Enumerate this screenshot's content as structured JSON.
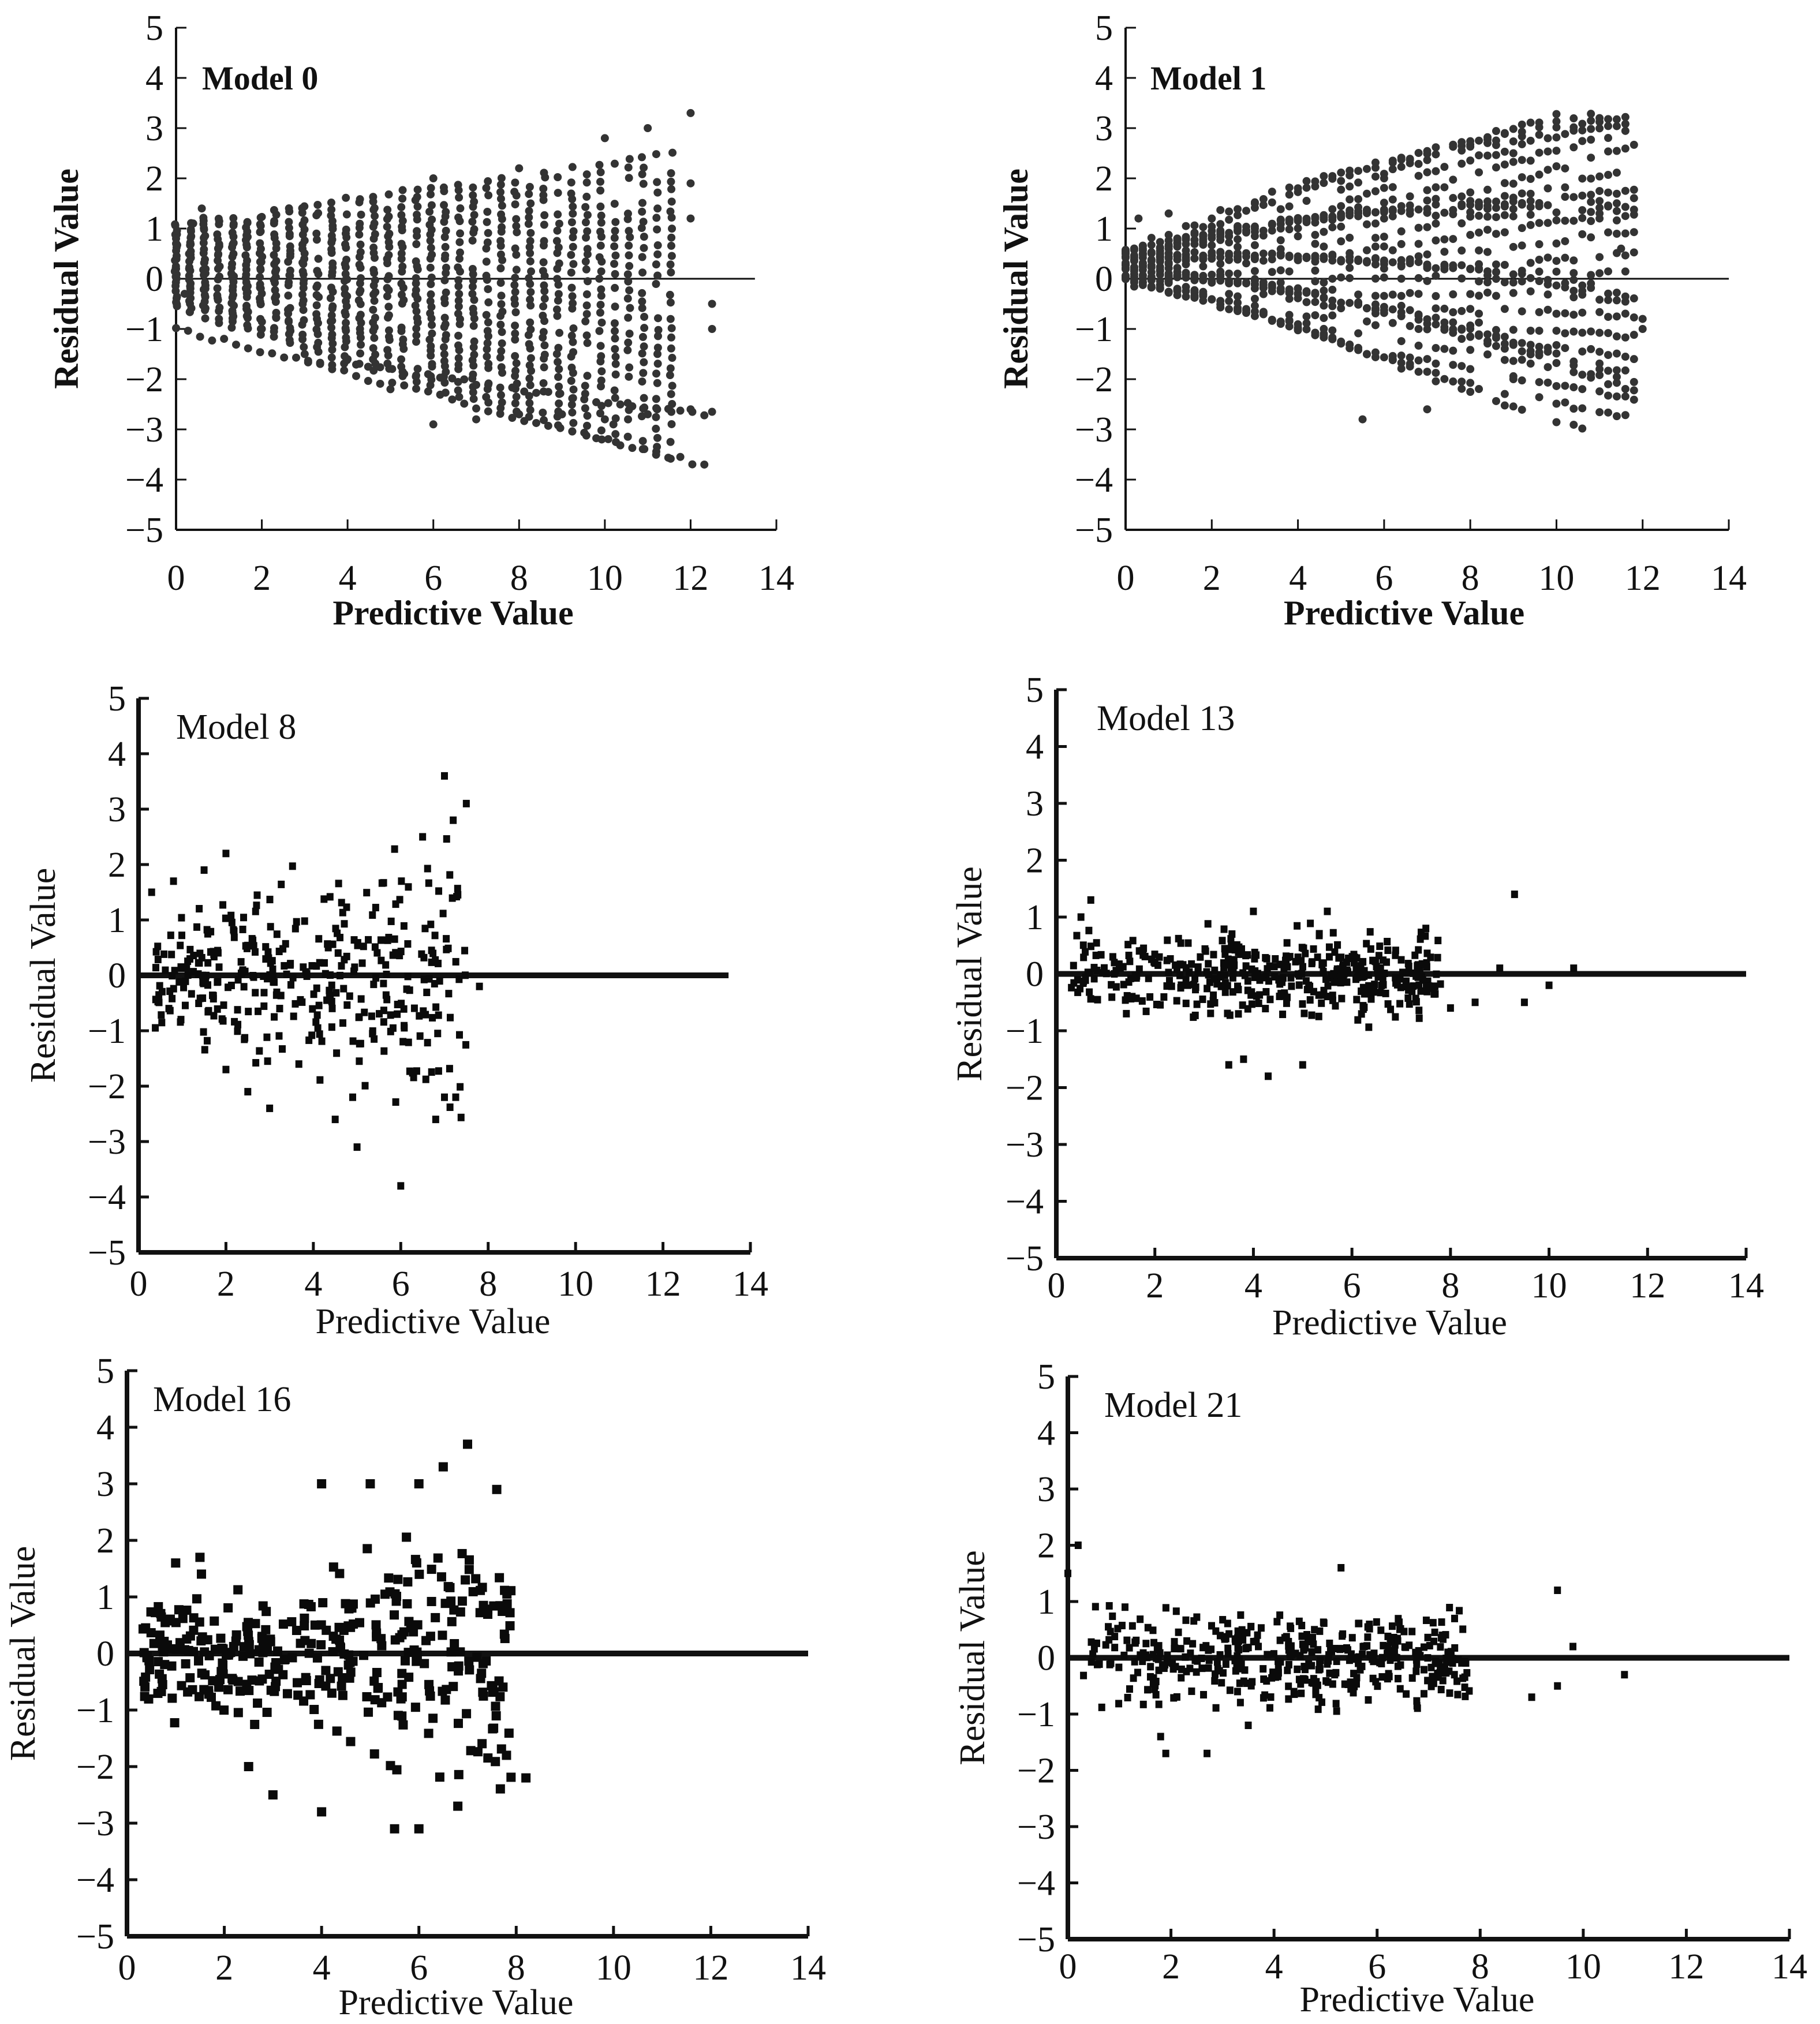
{
  "figure": {
    "domain": "residual scatter plots"
  },
  "chart_data": [
    {
      "type": "scatter",
      "title": "Model  0",
      "style": "bold",
      "xlabel": "Predictive  Value",
      "ylabel": "Residual  Value",
      "xlim": [
        0,
        14
      ],
      "ylim": [
        -5,
        5
      ],
      "xticks": [
        "0",
        "2",
        "4",
        "6",
        "8",
        "10",
        "12",
        "14"
      ],
      "yticks": [
        "-5",
        "-4",
        "-3",
        "-2",
        "-1",
        "0",
        "1",
        "2",
        "3",
        "4",
        "5"
      ],
      "reference_line": {
        "y": 0,
        "x_end": 13.5
      },
      "points_generator": "vertical-bands",
      "points": [
        [
          0.0,
          0.2
        ],
        [
          0.0,
          0.8
        ],
        [
          0.2,
          -0.3
        ],
        [
          0.4,
          1.1
        ],
        [
          0.6,
          1.4
        ],
        [
          1.0,
          -0.8
        ],
        [
          2.0,
          -1.0
        ],
        [
          3.0,
          -1.5
        ],
        [
          4.0,
          -1.6
        ],
        [
          5.0,
          -2.2
        ],
        [
          6.0,
          -2.9
        ],
        [
          7.0,
          -2.8
        ],
        [
          8.0,
          -2.7
        ],
        [
          9.0,
          -2.7
        ],
        [
          10.0,
          -2.8
        ],
        [
          11.0,
          -2.7
        ],
        [
          12.0,
          -2.6
        ],
        [
          12.5,
          -2.65
        ],
        [
          6.0,
          2.0
        ],
        [
          8.0,
          2.2
        ],
        [
          10.0,
          2.8
        ],
        [
          11.0,
          3.0
        ],
        [
          12.0,
          3.3
        ],
        [
          12.0,
          1.9
        ],
        [
          12.5,
          -0.5
        ],
        [
          12.5,
          -1.0
        ],
        [
          12.0,
          1.2
        ]
      ]
    },
    {
      "type": "scatter",
      "title": "Model  1",
      "style": "bold",
      "xlabel": "Predictive  Value",
      "ylabel": "Residual  Value",
      "xlim": [
        0,
        14
      ],
      "ylim": [
        -5,
        5
      ],
      "xticks": [
        "0",
        "2",
        "4",
        "6",
        "8",
        "10",
        "12",
        "14"
      ],
      "yticks": [
        "-5",
        "-4",
        "-3",
        "-2",
        "-1",
        "0",
        "1",
        "2",
        "3",
        "4",
        "5"
      ],
      "reference_line": {
        "y": 0,
        "x_end": 14
      },
      "points_generator": "fan-curves",
      "points": [
        [
          0.0,
          0.5
        ],
        [
          0.3,
          1.2
        ],
        [
          1.0,
          1.3
        ],
        [
          3.0,
          1.5
        ],
        [
          6.0,
          2.0
        ],
        [
          9.0,
          2.5
        ],
        [
          11.0,
          3.2
        ],
        [
          5.5,
          -2.8
        ],
        [
          7.0,
          -2.6
        ],
        [
          9.0,
          -2.0
        ],
        [
          11.0,
          -1.8
        ],
        [
          12.0,
          -1.0
        ],
        [
          11.0,
          1.3
        ],
        [
          11.5,
          0.6
        ],
        [
          12.0,
          -0.8
        ]
      ]
    },
    {
      "type": "scatter",
      "title": "Model 8",
      "style": "regular",
      "xlabel": "Predictive Value",
      "ylabel": "Residual Value",
      "xlim": [
        0,
        14
      ],
      "ylim": [
        -5,
        5
      ],
      "xticks": [
        "0",
        "2",
        "4",
        "6",
        "8",
        "10",
        "12",
        "14"
      ],
      "yticks": [
        "-5",
        "-4",
        "-3",
        "-2",
        "-1",
        "0",
        "1",
        "2",
        "3",
        "4",
        "5"
      ],
      "reference_line": {
        "y": 0,
        "x_end": 13.5
      },
      "points_generator": "random-cloud",
      "points": [
        [
          0.3,
          1.5
        ],
        [
          0.8,
          1.7
        ],
        [
          1.5,
          1.9
        ],
        [
          2.0,
          2.2
        ],
        [
          7.0,
          3.6
        ],
        [
          7.5,
          3.1
        ],
        [
          7.2,
          2.8
        ],
        [
          6.5,
          2.5
        ],
        [
          6.0,
          -3.8
        ],
        [
          5.0,
          -3.1
        ],
        [
          4.5,
          -2.6
        ],
        [
          3.0,
          -2.4
        ],
        [
          2.5,
          -2.1
        ],
        [
          7.0,
          -2.2
        ],
        [
          6.8,
          -2.6
        ],
        [
          7.8,
          -0.2
        ],
        [
          2.0,
          -1.7
        ],
        [
          4.9,
          -2.2
        ]
      ]
    },
    {
      "type": "scatter",
      "title": "Model 13",
      "style": "regular",
      "xlabel": "Predictive Value",
      "ylabel": "Residual Value",
      "xlim": [
        0,
        14
      ],
      "ylim": [
        -5,
        5
      ],
      "xticks": [
        "0",
        "2",
        "4",
        "6",
        "8",
        "10",
        "12",
        "14"
      ],
      "yticks": [
        "-5",
        "-4",
        "-3",
        "-2",
        "-1",
        "0",
        "1",
        "2",
        "3",
        "4",
        "5"
      ],
      "reference_line": {
        "y": 0,
        "x_end": 14
      },
      "points_generator": "tight-cloud",
      "points": [
        [
          0.5,
          1.0
        ],
        [
          0.7,
          1.3
        ],
        [
          9.3,
          1.4
        ],
        [
          4.0,
          1.1
        ],
        [
          5.5,
          1.1
        ],
        [
          3.5,
          -1.6
        ],
        [
          4.3,
          -1.8
        ],
        [
          5.0,
          -1.6
        ],
        [
          3.8,
          -1.5
        ],
        [
          8.5,
          -0.5
        ],
        [
          9.5,
          -0.5
        ],
        [
          10.0,
          -0.2
        ],
        [
          10.5,
          0.1
        ],
        [
          9.0,
          0.1
        ],
        [
          8.0,
          -0.6
        ],
        [
          7.5,
          0.8
        ]
      ]
    },
    {
      "type": "scatter",
      "title": "Model 16",
      "style": "regular",
      "xlabel": "Predictive Value",
      "ylabel": "Residual Value",
      "xlim": [
        0,
        14
      ],
      "ylim": [
        -5,
        5
      ],
      "xticks": [
        "0",
        "2",
        "4",
        "6",
        "8",
        "10",
        "12",
        "14"
      ],
      "yticks": [
        "-5",
        "-4",
        "-3",
        "-2",
        "-1",
        "0",
        "1",
        "2",
        "3",
        "4",
        "5"
      ],
      "reference_line": {
        "y": 0,
        "x_end": 14
      },
      "points_generator": "wide-cloud",
      "points": [
        [
          7.0,
          3.7
        ],
        [
          6.5,
          3.3
        ],
        [
          6.0,
          3.0
        ],
        [
          4.0,
          3.0
        ],
        [
          5.0,
          3.0
        ],
        [
          7.6,
          2.9
        ],
        [
          3.0,
          -2.5
        ],
        [
          4.0,
          -2.8
        ],
        [
          5.5,
          -3.1
        ],
        [
          6.0,
          -3.1
        ],
        [
          6.8,
          -2.7
        ],
        [
          8.2,
          -2.2
        ],
        [
          7.8,
          -1.8
        ],
        [
          2.5,
          -2.0
        ],
        [
          1.5,
          1.7
        ],
        [
          1.0,
          1.6
        ]
      ]
    },
    {
      "type": "scatter",
      "title": "Model 21",
      "style": "regular",
      "xlabel": "Predictive Value",
      "ylabel": "Residual Value",
      "xlim": [
        0,
        14
      ],
      "ylim": [
        -5,
        5
      ],
      "xticks": [
        "0",
        "2",
        "4",
        "6",
        "8",
        "10",
        "12",
        "14"
      ],
      "yticks": [
        "-5",
        "-4",
        "-3",
        "-2",
        "-1",
        "0",
        "1",
        "2",
        "3",
        "4",
        "5"
      ],
      "reference_line": {
        "y": 0,
        "x_end": 14
      },
      "points_generator": "tight-cloud",
      "points": [
        [
          0.0,
          1.5
        ],
        [
          0.2,
          2.0
        ],
        [
          9.5,
          1.2
        ],
        [
          5.3,
          1.6
        ],
        [
          1.8,
          -1.4
        ],
        [
          1.9,
          -1.7
        ],
        [
          2.7,
          -1.7
        ],
        [
          3.5,
          -1.2
        ],
        [
          9.5,
          -0.5
        ],
        [
          10.8,
          -0.3
        ],
        [
          9.0,
          -0.7
        ],
        [
          7.5,
          -0.3
        ],
        [
          9.8,
          0.2
        ]
      ]
    }
  ]
}
